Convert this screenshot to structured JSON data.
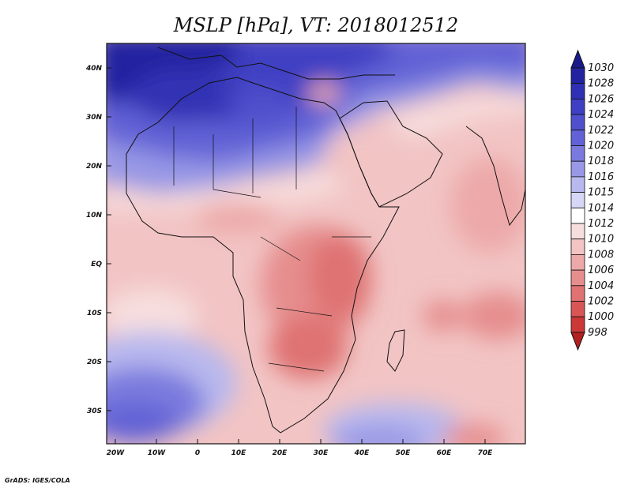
{
  "title": "MSLP [hPa], VT: 2018012512",
  "credit": "GrADS: IGES/COLA",
  "lon_ticks": [
    "20W",
    "10W",
    "0",
    "10E",
    "20E",
    "30E",
    "40E",
    "50E",
    "60E",
    "70E"
  ],
  "lat_ticks": [
    "40N",
    "30N",
    "20N",
    "10N",
    "EQ",
    "10S",
    "20S",
    "30S"
  ],
  "colorbar": {
    "levels": [
      "1030",
      "1028",
      "1026",
      "1024",
      "1022",
      "1020",
      "1018",
      "1016",
      "1015",
      "1014",
      "1012",
      "1010",
      "1008",
      "1006",
      "1004",
      "1002",
      "1000",
      "998"
    ],
    "colors": [
      "#1a1a8c",
      "#2323a0",
      "#3030b4",
      "#3f3fc3",
      "#5050cc",
      "#6262d6",
      "#7a7ade",
      "#9898e6",
      "#b8b8ee",
      "#d6d6f6",
      "#ffffff",
      "#f7dede",
      "#f2c4c4",
      "#eda9a9",
      "#e68e8e",
      "#df7272",
      "#d85656",
      "#cc3838",
      "#b22020"
    ]
  }
}
